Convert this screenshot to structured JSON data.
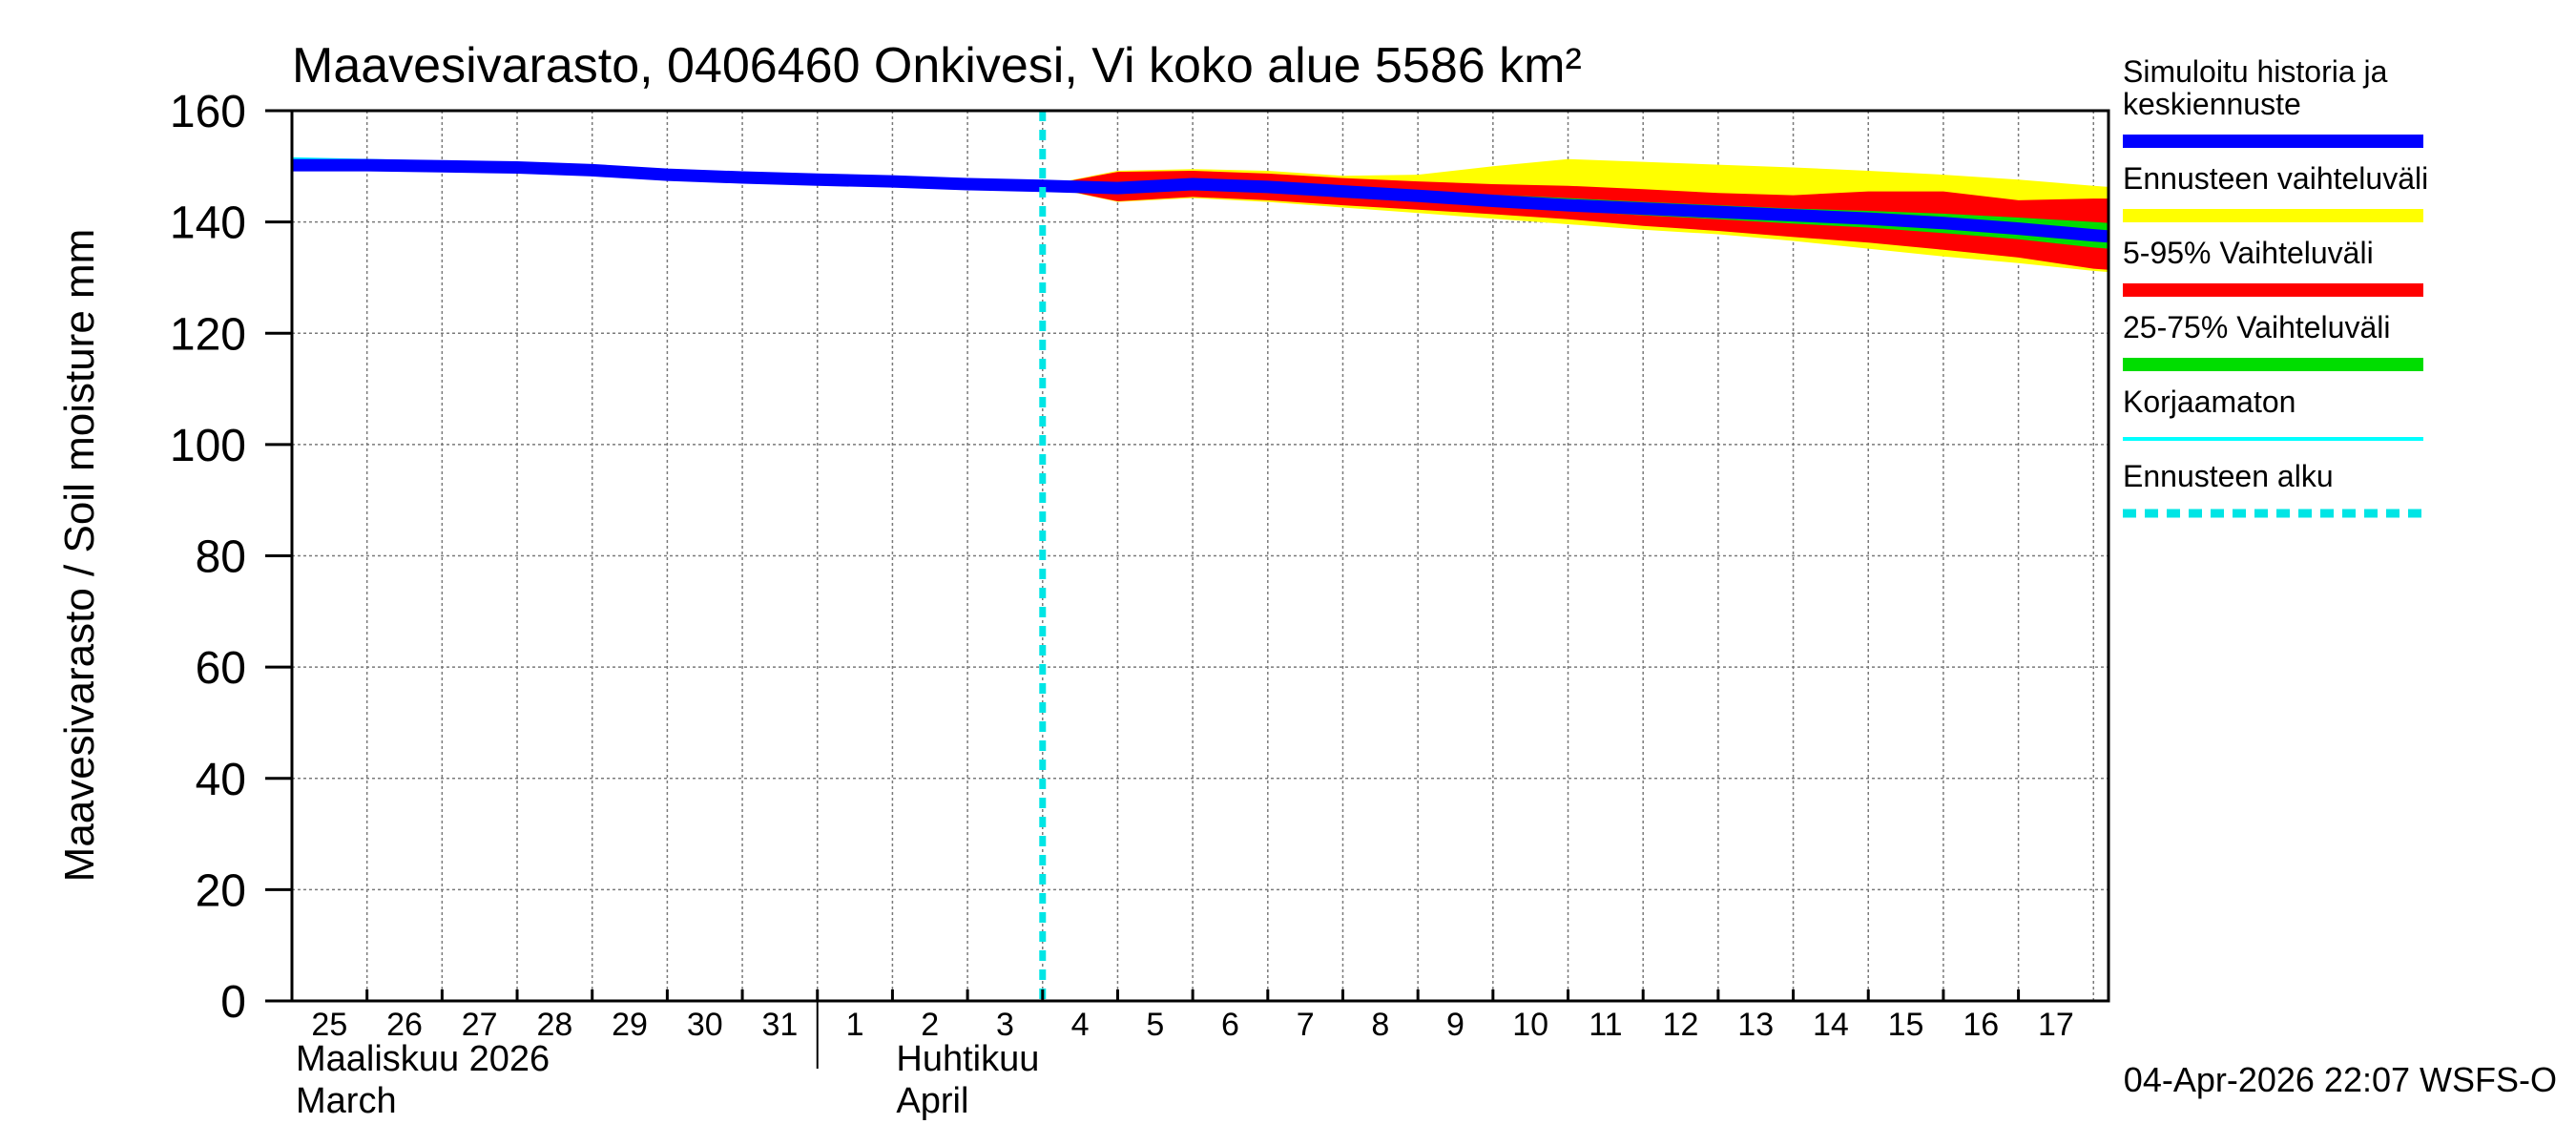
{
  "chart_data": {
    "type": "area",
    "title": "Maavesivarasto, 0406460 Onkivesi, Vi koko alue 5586 km²",
    "ylabel": "Maavesivarasto / Soil moisture   mm",
    "ylim": [
      0,
      160
    ],
    "yticks": [
      0,
      20,
      40,
      60,
      80,
      100,
      120,
      140,
      160
    ],
    "xlim": [
      0,
      24.2
    ],
    "x_tick_labels": [
      "25",
      "26",
      "27",
      "28",
      "29",
      "30",
      "31",
      "1",
      "2",
      "3",
      "4",
      "5",
      "6",
      "7",
      "8",
      "9",
      "10",
      "11",
      "12",
      "13",
      "14",
      "15",
      "16",
      "17"
    ],
    "month_labels": [
      {
        "x": 0,
        "line1": "Maaliskuu 2026",
        "line2": "March"
      },
      {
        "x": 8,
        "line1": "Huhtikuu",
        "line2": "April"
      }
    ],
    "month_separator_x": 7,
    "forecast_start_x": 10,
    "timestamp": "04-Apr-2026 22:07 WSFS-O",
    "legend": [
      {
        "label": "Simuloitu historia ja keskiennuste",
        "color": "#0000ff",
        "style": "thick"
      },
      {
        "label": "Ennusteen vaihteluväli",
        "color": "#ffff00",
        "style": "thick"
      },
      {
        "label": "5-95% Vaihteluväli",
        "color": "#ff0000",
        "style": "thick"
      },
      {
        "label": "25-75% Vaihteluväli",
        "color": "#00dd00",
        "style": "thick"
      },
      {
        "label": "Korjaamaton",
        "color": "#00ffff",
        "style": "thin"
      },
      {
        "label": "Ennusteen alku",
        "color": "#00e5e5",
        "style": "dashed"
      }
    ],
    "forecast_x": [
      10,
      11,
      12,
      13,
      14,
      15,
      16,
      17,
      18,
      19,
      20,
      21,
      22,
      23,
      24,
      24.2
    ],
    "series": [
      {
        "name": "Ennusteen vaihteluväli max",
        "values": [
          146.5,
          149.2,
          149.5,
          149.2,
          148.3,
          148.5,
          150.0,
          151.3,
          150.8,
          150.3,
          149.8,
          149.2,
          148.5,
          147.6,
          146.5,
          146.3
        ]
      },
      {
        "name": "Ennusteen vaihteluväli min",
        "values": [
          146.5,
          143.6,
          144.3,
          143.6,
          142.6,
          141.6,
          140.6,
          139.6,
          138.6,
          137.8,
          136.6,
          135.2,
          133.8,
          132.6,
          131.2,
          131.0
        ]
      },
      {
        "name": "5-95% upper",
        "values": [
          146.5,
          149.0,
          149.2,
          148.7,
          147.9,
          147.3,
          146.8,
          146.5,
          145.9,
          145.2,
          144.8,
          145.5,
          145.5,
          143.9,
          144.2,
          144.2
        ]
      },
      {
        "name": "5-95% lower",
        "values": [
          146.5,
          143.7,
          144.5,
          143.9,
          143.0,
          142.2,
          141.4,
          140.5,
          139.3,
          138.4,
          137.3,
          136.3,
          135.0,
          133.6,
          131.6,
          131.4
        ]
      },
      {
        "name": "25-75% upper",
        "values": [
          146.5,
          147.2,
          147.7,
          147.2,
          146.5,
          145.6,
          144.9,
          144.3,
          143.6,
          143.0,
          142.4,
          142.0,
          141.5,
          140.8,
          140.0,
          139.8
        ]
      },
      {
        "name": "25-75% lower",
        "values": [
          146.5,
          145.0,
          145.7,
          145.2,
          144.4,
          143.6,
          142.8,
          142.0,
          141.2,
          140.5,
          139.7,
          139.0,
          138.0,
          136.9,
          135.4,
          135.2
        ]
      },
      {
        "name": "Keskiennuste",
        "values": [
          146.5,
          146.1,
          146.8,
          146.3,
          145.5,
          144.7,
          143.8,
          143.0,
          142.4,
          141.8,
          141.2,
          140.6,
          139.8,
          138.8,
          137.6,
          137.4
        ]
      }
    ],
    "history_x": [
      0,
      1,
      2,
      3,
      4,
      5,
      6,
      7,
      8,
      9,
      10
    ],
    "history_values": [
      150.2,
      150.2,
      150.0,
      149.8,
      149.3,
      148.5,
      148.0,
      147.6,
      147.3,
      146.8,
      146.5
    ],
    "uncorrected_values": [
      151.3,
      151.0,
      150.7,
      150.5,
      150.0,
      149.2,
      148.4,
      147.5,
      146.9,
      146.6,
      146.5
    ]
  }
}
